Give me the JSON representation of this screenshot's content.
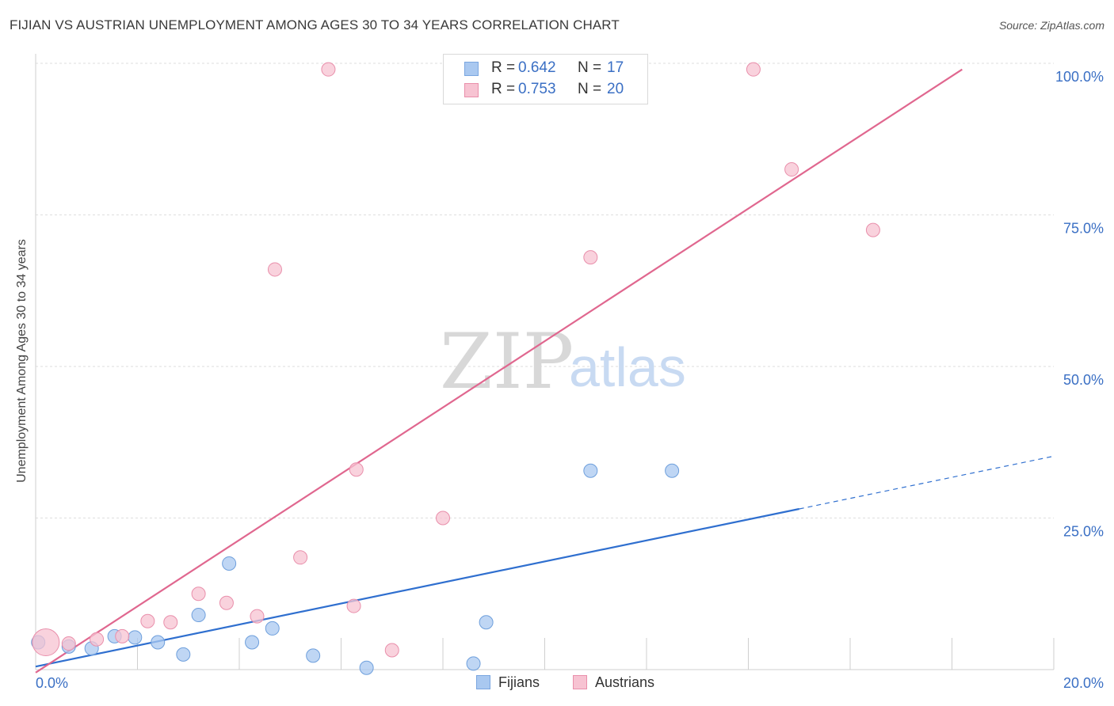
{
  "header": {
    "title": "FIJIAN VS AUSTRIAN UNEMPLOYMENT AMONG AGES 30 TO 34 YEARS CORRELATION CHART",
    "source": "Source: ZipAtlas.com"
  },
  "watermark": {
    "zip": "ZIP",
    "atlas": "atlas"
  },
  "legend": {
    "rows": [
      {
        "r_label": "R =",
        "r_value": "0.642",
        "n_label": "N =",
        "n_value": "17",
        "color": "#a9c8f0",
        "border": "#7aa6e0"
      },
      {
        "r_label": "R =",
        "r_value": "0.753",
        "n_label": "N =",
        "n_value": "20",
        "color": "#f7c3d2",
        "border": "#e98fab"
      }
    ]
  },
  "bottom_legend": {
    "fijians": "Fijians",
    "austrians": "Austrians"
  },
  "chart_data": {
    "type": "scatter",
    "title": "FIJIAN VS AUSTRIAN UNEMPLOYMENT AMONG AGES 30 TO 34 YEARS CORRELATION CHART",
    "xlabel": "",
    "ylabel": "Unemployment Among Ages 30 to 34 years",
    "xlim": [
      0,
      20
    ],
    "ylim": [
      0,
      100
    ],
    "x_tick_labels": [
      "0.0%",
      "20.0%"
    ],
    "y_tick_labels": [
      "100.0%",
      "75.0%",
      "50.0%",
      "25.0%"
    ],
    "y_tick_values": [
      100,
      75,
      50,
      25
    ],
    "grid": true,
    "series": [
      {
        "name": "Fijians",
        "color": "#a9c8f0",
        "stroke": "#6e9fdc",
        "line_color": "#2f6fcf",
        "points": [
          {
            "x": 0.05,
            "y": 4.5
          },
          {
            "x": 0.65,
            "y": 3.8
          },
          {
            "x": 1.1,
            "y": 3.5
          },
          {
            "x": 1.55,
            "y": 5.5
          },
          {
            "x": 1.95,
            "y": 5.3
          },
          {
            "x": 2.4,
            "y": 4.5
          },
          {
            "x": 2.9,
            "y": 2.5
          },
          {
            "x": 3.2,
            "y": 9.0
          },
          {
            "x": 3.8,
            "y": 17.5
          },
          {
            "x": 4.25,
            "y": 4.5
          },
          {
            "x": 4.65,
            "y": 6.8
          },
          {
            "x": 5.45,
            "y": 2.3
          },
          {
            "x": 6.5,
            "y": 0.3
          },
          {
            "x": 8.6,
            "y": 1.0
          },
          {
            "x": 8.85,
            "y": 7.8
          },
          {
            "x": 10.9,
            "y": 32.8
          },
          {
            "x": 12.5,
            "y": 32.8
          }
        ],
        "trend": {
          "x0": 0,
          "y0": 0.5,
          "x1": 15.0,
          "y1": 26.5,
          "dash_x1": 20.0,
          "dash_y1": 35.2
        }
      },
      {
        "name": "Austrians",
        "color": "#f7c3d2",
        "stroke": "#e98fab",
        "line_color": "#e0678f",
        "points": [
          {
            "x": 0.2,
            "y": 4.5,
            "big": true
          },
          {
            "x": 0.65,
            "y": 4.3
          },
          {
            "x": 1.2,
            "y": 5.0
          },
          {
            "x": 1.7,
            "y": 5.5
          },
          {
            "x": 2.2,
            "y": 8.0
          },
          {
            "x": 2.65,
            "y": 7.8
          },
          {
            "x": 3.2,
            "y": 12.5
          },
          {
            "x": 3.75,
            "y": 11.0
          },
          {
            "x": 4.35,
            "y": 8.8
          },
          {
            "x": 4.7,
            "y": 66.0
          },
          {
            "x": 5.2,
            "y": 18.5
          },
          {
            "x": 5.75,
            "y": 99.0
          },
          {
            "x": 6.3,
            "y": 33.0
          },
          {
            "x": 6.25,
            "y": 10.5
          },
          {
            "x": 7.0,
            "y": 3.2
          },
          {
            "x": 8.0,
            "y": 25.0
          },
          {
            "x": 10.9,
            "y": 68.0
          },
          {
            "x": 14.1,
            "y": 99.0
          },
          {
            "x": 14.85,
            "y": 82.5
          },
          {
            "x": 16.45,
            "y": 72.5
          }
        ],
        "trend": {
          "x0": 0,
          "y0": -0.5,
          "x1": 18.2,
          "y1": 99.0
        }
      }
    ]
  }
}
